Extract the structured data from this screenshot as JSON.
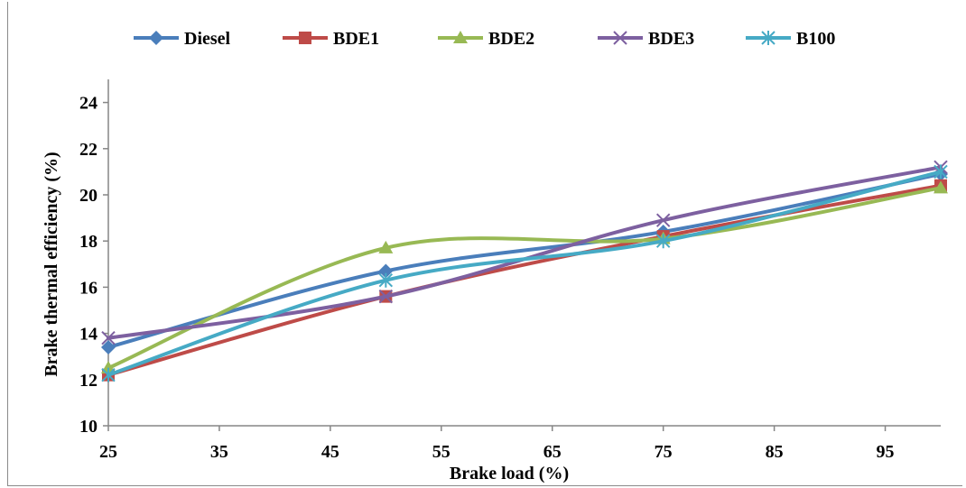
{
  "chart_data": {
    "type": "line",
    "title": "",
    "xlabel": "Brake load (%)",
    "ylabel": "Brake  thermal  efficiency (%)",
    "xlim": [
      25,
      100
    ],
    "ylim": [
      10,
      25
    ],
    "xticks": [
      25,
      35,
      45,
      55,
      65,
      75,
      85,
      95
    ],
    "yticks": [
      10,
      12,
      14,
      16,
      18,
      20,
      22,
      24
    ],
    "grid": false,
    "legend": "top",
    "x": [
      25,
      50,
      75,
      100
    ],
    "series": [
      {
        "name": "Diesel",
        "color": "#4a7ebb",
        "marker": "diamond",
        "values": [
          13.4,
          16.7,
          18.4,
          20.9
        ]
      },
      {
        "name": "BDE1",
        "color": "#be4b48",
        "marker": "square",
        "values": [
          12.2,
          15.6,
          18.2,
          20.4
        ]
      },
      {
        "name": "BDE2",
        "color": "#98b954",
        "marker": "triangle",
        "values": [
          12.5,
          17.7,
          18.1,
          20.3
        ]
      },
      {
        "name": "BDE3",
        "color": "#7d60a0",
        "marker": "x",
        "values": [
          13.8,
          15.6,
          18.9,
          21.2
        ]
      },
      {
        "name": "B100",
        "color": "#46aac5",
        "marker": "star",
        "values": [
          12.2,
          16.3,
          18.0,
          21.0
        ]
      }
    ]
  }
}
